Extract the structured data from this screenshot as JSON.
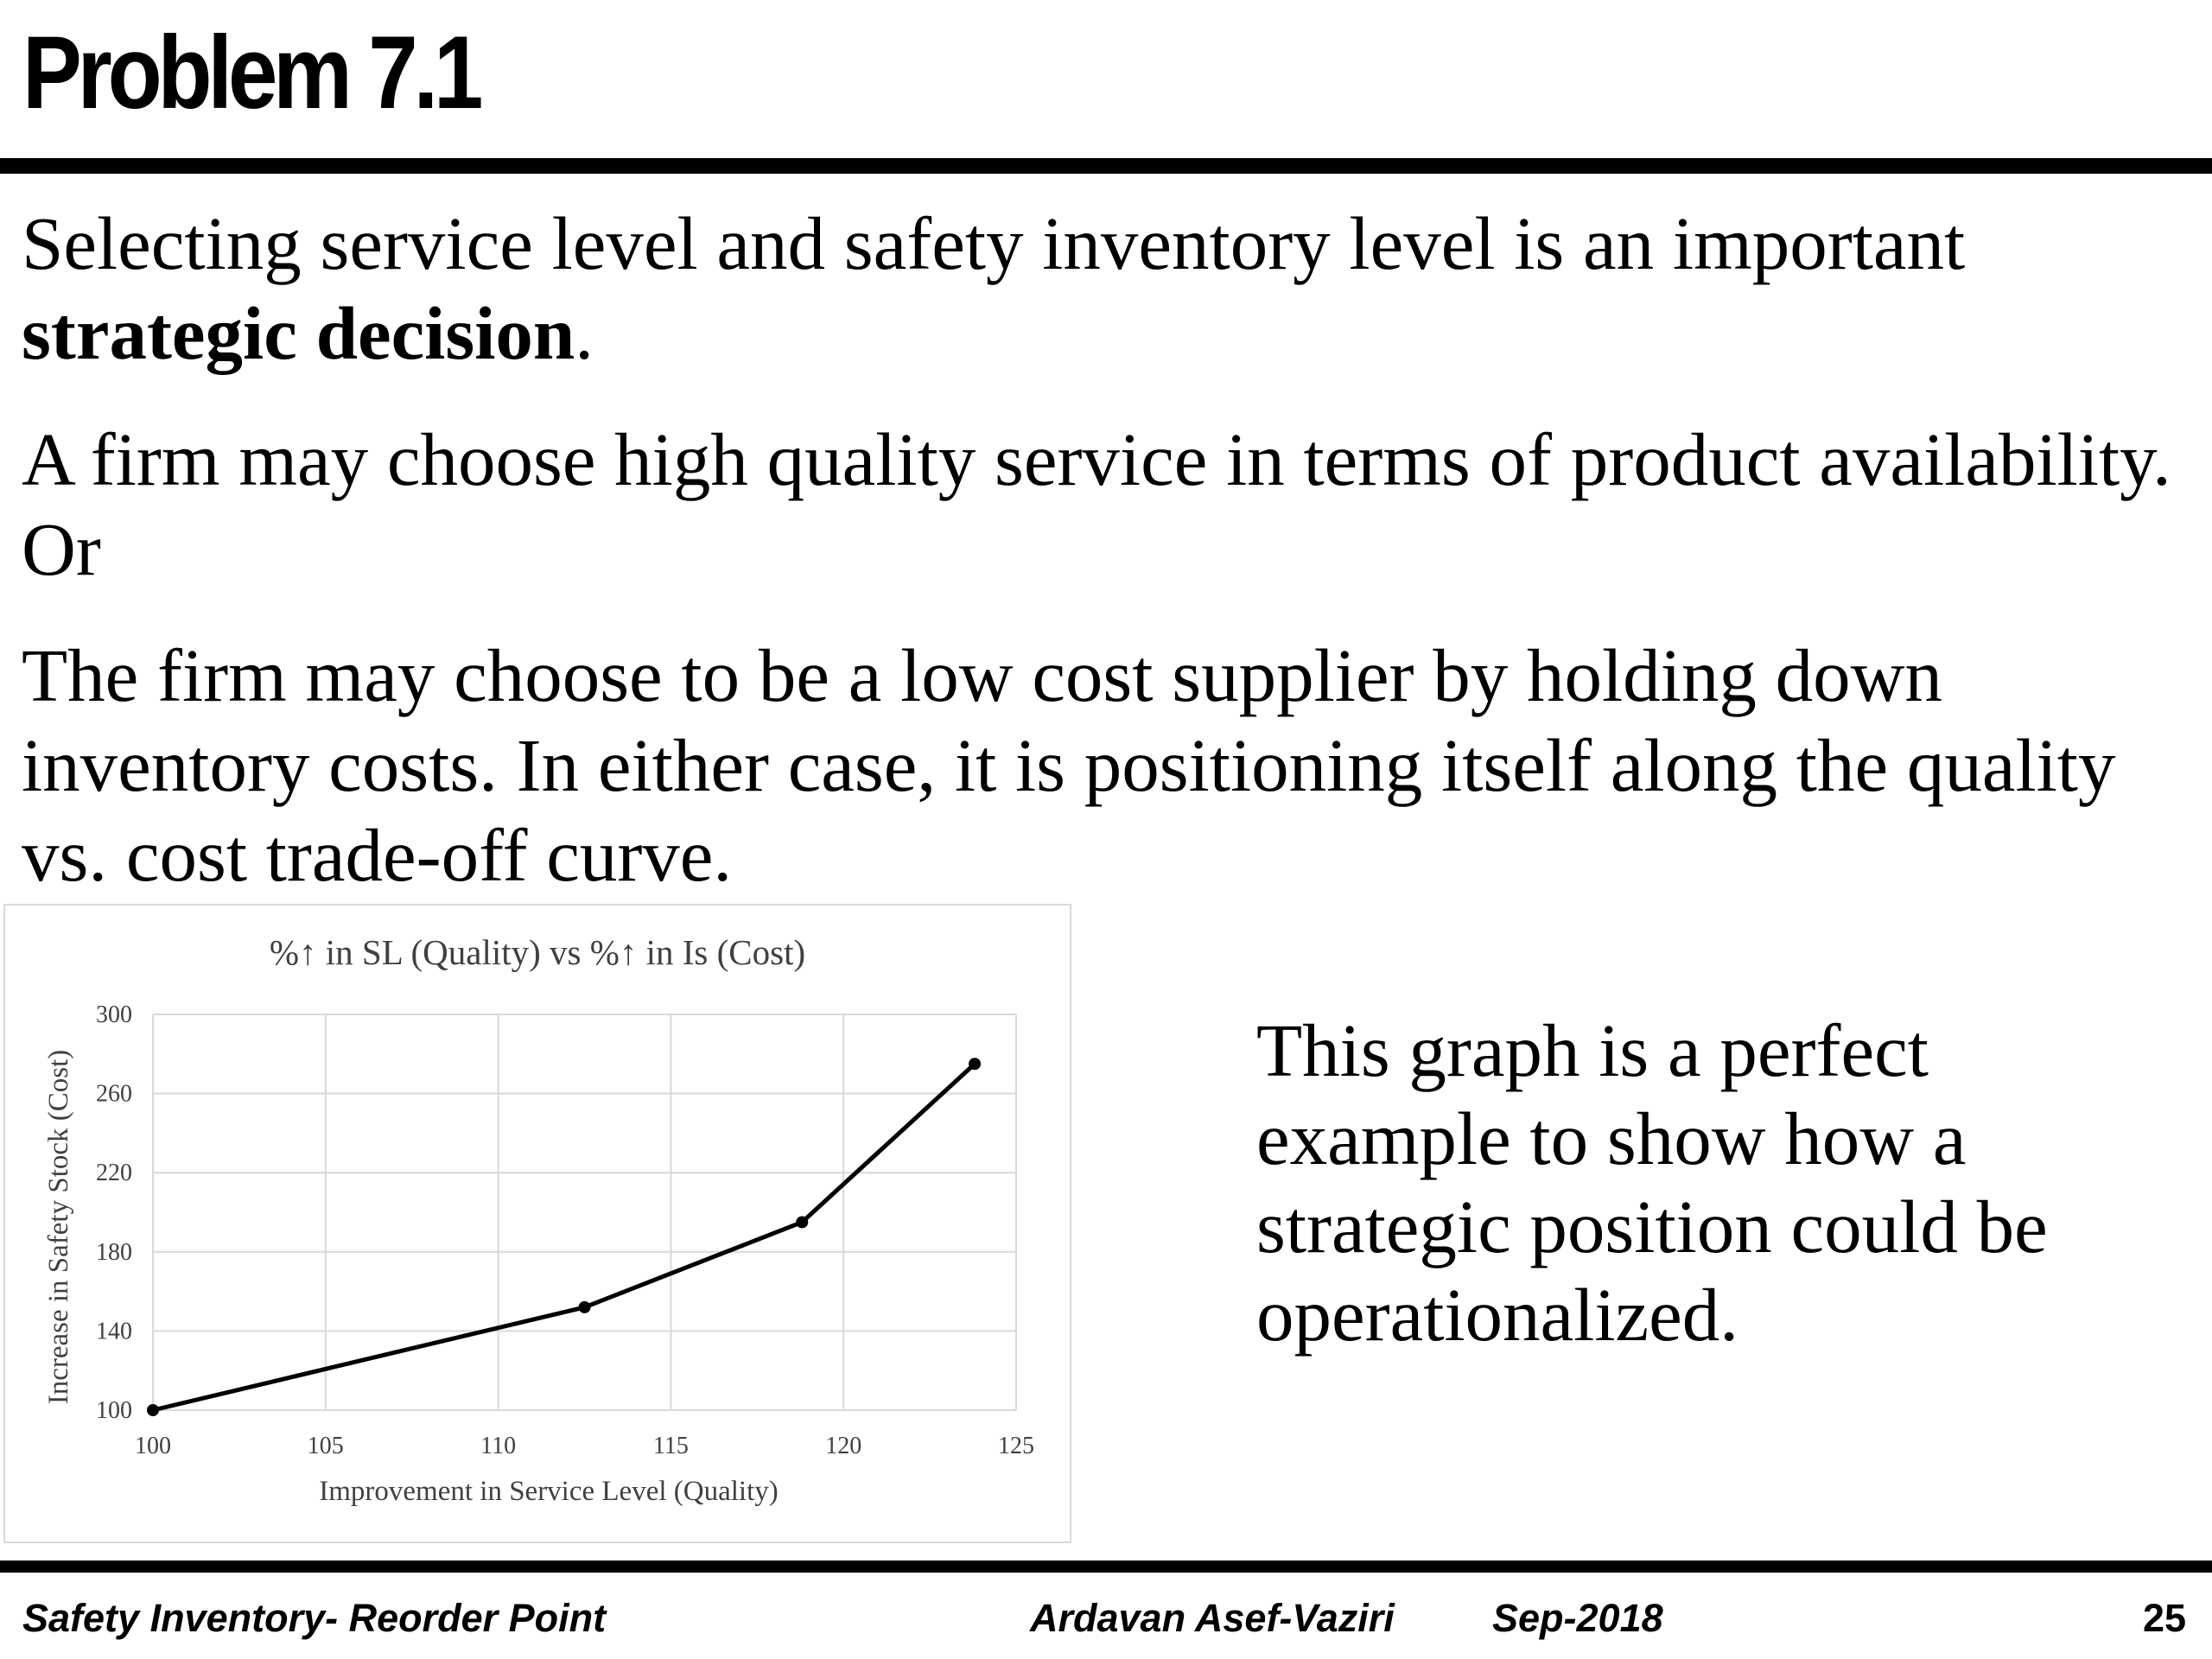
{
  "slide": {
    "title": "Problem 7.1",
    "paragraphs": {
      "p1_text": "Selecting service level and safety inventory level is an important ",
      "p1_bold": "strategic decision",
      "p1_end": ".",
      "p2": "A firm may choose high quality service in terms of product availability.  Or",
      "p3": "The firm may choose to be a low cost supplier by holding down inventory costs. In either case, it is positioning itself along the quality vs. cost trade-off curve."
    },
    "side_note": "This graph is a perfect example to show how a strategic position could be operationalized."
  },
  "footer": {
    "left": "Safety Inventory- Reorder Point",
    "author": "Ardavan Asef-Vaziri",
    "date": "Sep-2018",
    "page": "25"
  },
  "chart_data": {
    "type": "line",
    "title": "%↑ in SL (Quality) vs %↑ in Is (Cost)",
    "xlabel": "Improvement in Service Level (Quality)",
    "ylabel": "Increase in Safety Stock (Cost)",
    "xlim": [
      100,
      125
    ],
    "ylim": [
      100,
      300
    ],
    "x_ticks": [
      "100",
      "105",
      "110",
      "115",
      "120",
      "125"
    ],
    "y_ticks": [
      "100",
      "140",
      "180",
      "220",
      "260",
      "300"
    ],
    "grid": true,
    "legend": "none",
    "line_color": "#000000",
    "grid_color": "#d9d9d9",
    "series": [
      {
        "x": [
          100,
          112.5,
          118.8,
          123.8
        ],
        "y": [
          100,
          152,
          195,
          275
        ]
      }
    ]
  }
}
